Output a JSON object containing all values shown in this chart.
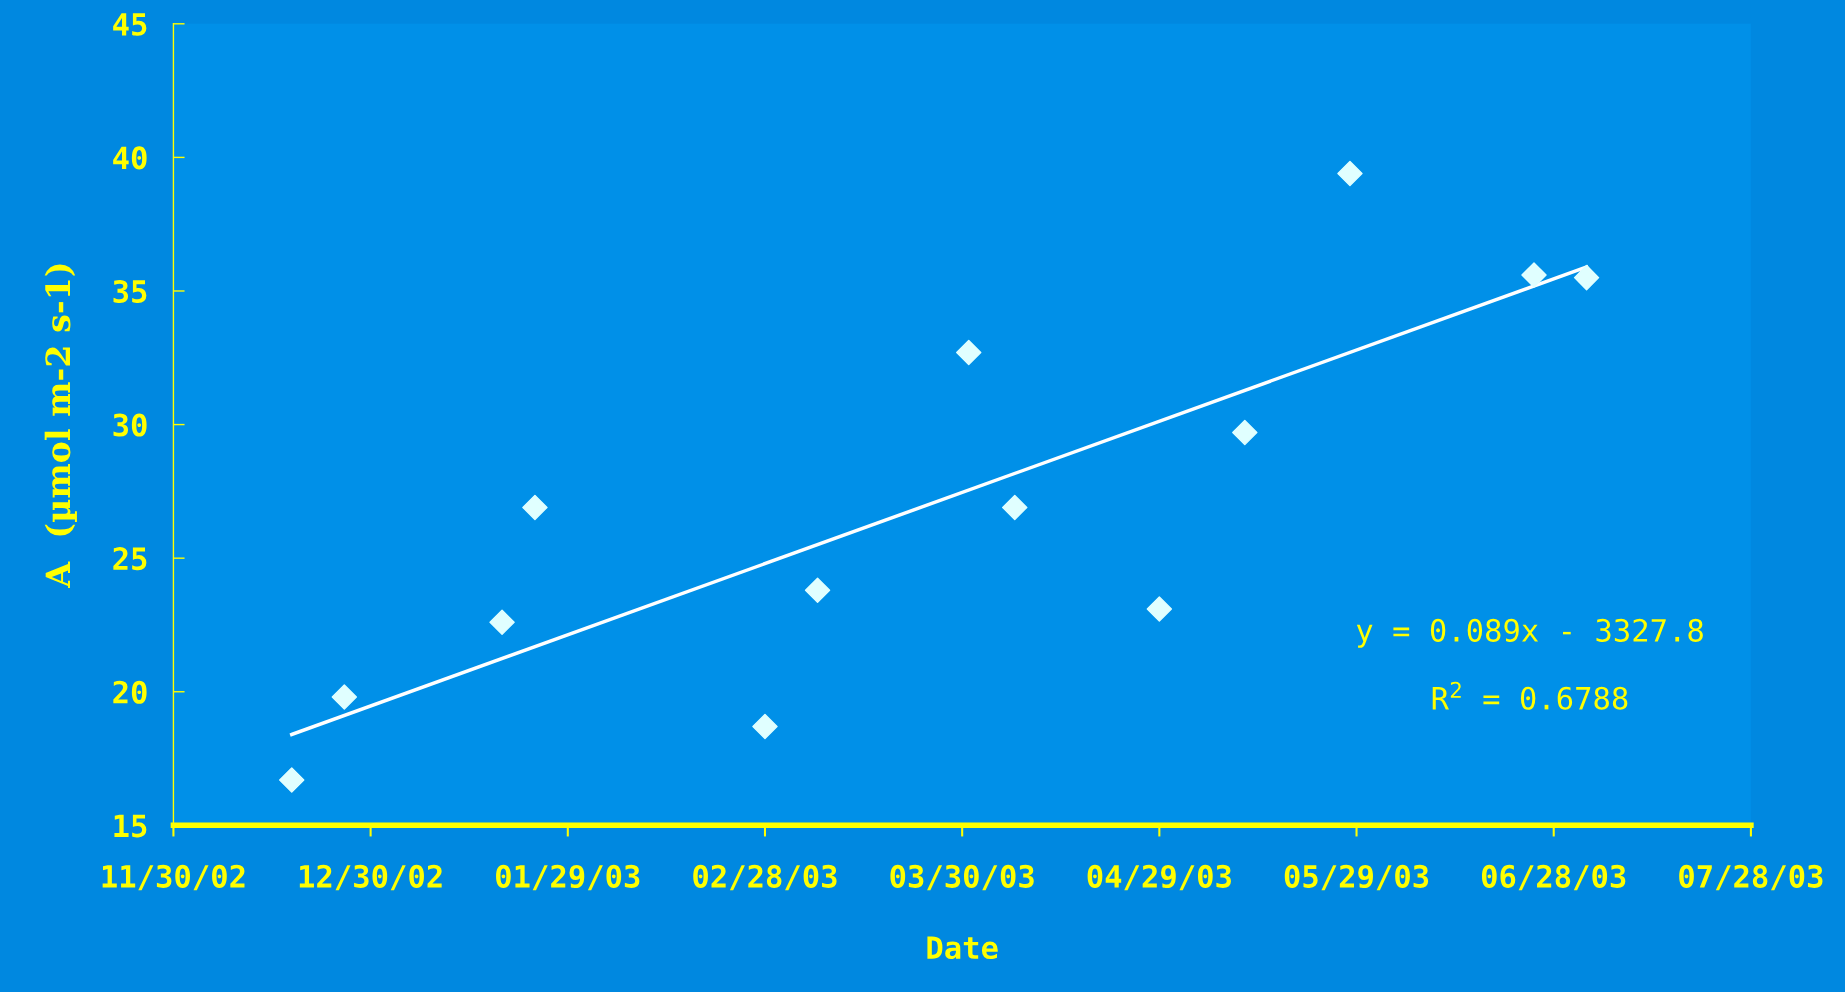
{
  "chart_data": {
    "type": "scatter",
    "xlabel": "Date",
    "ylabel": "A  (µmol m-2 s-1)",
    "series": [
      {
        "color": "#e0ffff",
        "marker": "diamond",
        "x": [
          "2002-12-18",
          "2002-12-26",
          "2003-01-19",
          "2003-01-24",
          "2003-02-28",
          "2003-03-08",
          "2003-03-31",
          "2003-04-07",
          "2003-04-29",
          "2003-05-12",
          "2003-05-28",
          "2003-06-25",
          "2003-07-03"
        ],
        "values": [
          16.7,
          19.8,
          22.6,
          26.9,
          18.7,
          23.8,
          32.7,
          26.9,
          23.1,
          29.7,
          39.4,
          35.6,
          35.5
        ]
      },
      {
        "type": "line",
        "color": "#ffffff",
        "marker": "none",
        "line_style": "solid",
        "x": [
          "2002-12-18",
          "2003-07-03"
        ],
        "values": [
          18.4,
          35.9
        ]
      }
    ],
    "xlim": [
      "2002-11-30",
      "2003-07-28"
    ],
    "xticks": [
      {
        "value": "2002-11-30",
        "label": "11/30/02"
      },
      {
        "value": "2002-12-30",
        "label": "12/30/02"
      },
      {
        "value": "2003-01-29",
        "label": "01/29/03"
      },
      {
        "value": "2003-02-28",
        "label": "02/28/03"
      },
      {
        "value": "2003-03-30",
        "label": "03/30/03"
      },
      {
        "value": "2003-04-29",
        "label": "04/29/03"
      },
      {
        "value": "2003-05-29",
        "label": "05/29/03"
      },
      {
        "value": "2003-06-28",
        "label": "06/28/03"
      },
      {
        "value": "2003-07-28",
        "label": "07/28/03"
      }
    ],
    "ylim": [
      15,
      45
    ],
    "yticks": [
      15,
      20,
      25,
      30,
      35,
      40,
      45
    ],
    "grid": false,
    "legend": false,
    "annotations": [
      "y = 0.089x - 3327.8",
      "R$^{2}$ = 0.6788"
    ]
  }
}
